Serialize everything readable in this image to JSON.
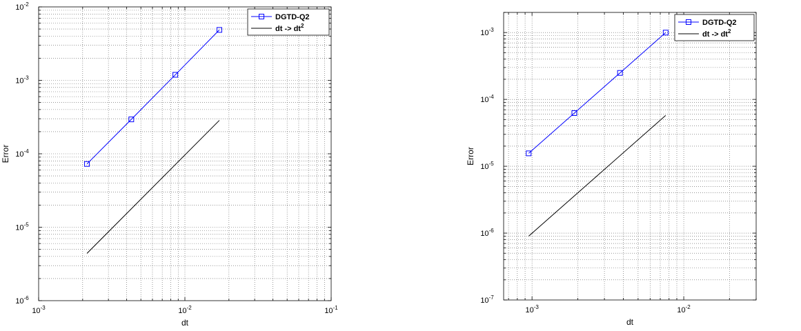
{
  "chart_data": [
    {
      "type": "line",
      "xscale": "log",
      "yscale": "log",
      "xlim": [
        0.001,
        0.1
      ],
      "ylim": [
        1e-06,
        0.01
      ],
      "xlabel": "dt",
      "ylabel": "Error",
      "grid": true,
      "legend_position": "top-right",
      "x_ticks": [
        {
          "value": 0.001,
          "base": "10",
          "exp": "-3"
        },
        {
          "value": 0.01,
          "base": "10",
          "exp": "-2"
        },
        {
          "value": 0.1,
          "base": "10",
          "exp": "-1"
        }
      ],
      "y_ticks": [
        {
          "value": 1e-06,
          "base": "10",
          "exp": "-6"
        },
        {
          "value": 1e-05,
          "base": "10",
          "exp": "-5"
        },
        {
          "value": 0.0001,
          "base": "10",
          "exp": "-4"
        },
        {
          "value": 0.001,
          "base": "10",
          "exp": "-3"
        },
        {
          "value": 0.01,
          "base": "10",
          "exp": "-2"
        }
      ],
      "series": [
        {
          "name": "DGTD-Q2",
          "color": "#0000ff",
          "marker": "square",
          "x": [
            0.00214,
            0.0043,
            0.0086,
            0.0172
          ],
          "y": [
            7.27e-05,
            0.000294,
            0.00119,
            0.00486
          ]
        },
        {
          "name": "dt -> dt",
          "name_superscript": "2",
          "color": "#000000",
          "marker": "none",
          "x": [
            0.00214,
            0.0172
          ],
          "y": [
            4.4e-06,
            0.000285
          ]
        }
      ]
    },
    {
      "type": "line",
      "xscale": "log",
      "yscale": "log",
      "xlim": [
        0.00065,
        0.03
      ],
      "ylim": [
        1e-07,
        0.002
      ],
      "xlabel": "dt",
      "ylabel": "Error",
      "grid": true,
      "legend_position": "top-right",
      "x_ticks": [
        {
          "value": 0.001,
          "base": "10",
          "exp": "-3"
        },
        {
          "value": 0.01,
          "base": "10",
          "exp": "-2"
        }
      ],
      "y_ticks": [
        {
          "value": 1e-07,
          "base": "10",
          "exp": "-7"
        },
        {
          "value": 1e-06,
          "base": "10",
          "exp": "-6"
        },
        {
          "value": 1e-05,
          "base": "10",
          "exp": "-5"
        },
        {
          "value": 0.0001,
          "base": "10",
          "exp": "-4"
        },
        {
          "value": 0.001,
          "base": "10",
          "exp": "-3"
        }
      ],
      "series": [
        {
          "name": "DGTD-Q2",
          "color": "#0000ff",
          "marker": "square",
          "x": [
            0.00095,
            0.0019,
            0.0038,
            0.0076
          ],
          "y": [
            1.56e-05,
            6.24e-05,
            0.000249,
            0.000998
          ]
        },
        {
          "name": "dt -> dt",
          "name_superscript": "2",
          "color": "#000000",
          "marker": "none",
          "x": [
            0.00095,
            0.0076
          ],
          "y": [
            9e-07,
            5.76e-05
          ]
        }
      ]
    }
  ]
}
